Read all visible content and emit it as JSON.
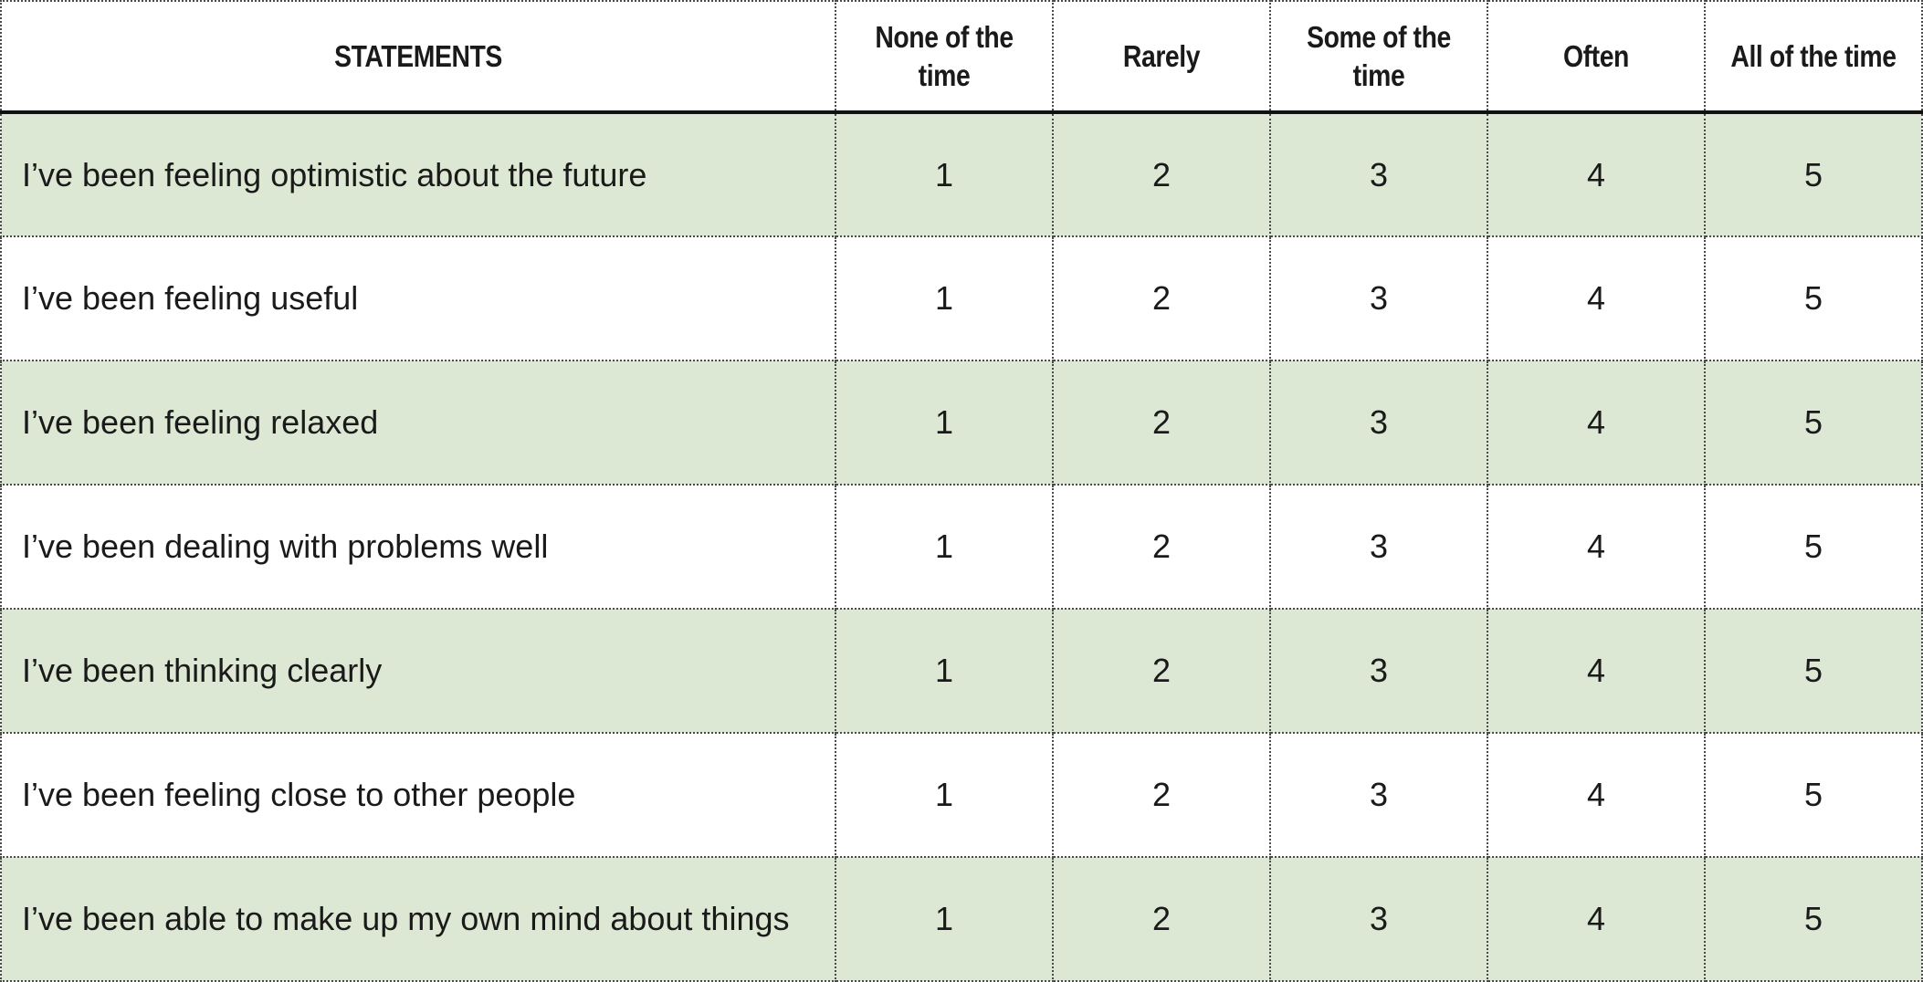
{
  "table": {
    "headers": [
      "STATEMENTS",
      "None of the time",
      "Rarely",
      "Some of the time",
      "Often",
      "All of the time"
    ],
    "rows": [
      {
        "statement": "I’ve been feeling optimistic about the future",
        "values": [
          "1",
          "2",
          "3",
          "4",
          "5"
        ]
      },
      {
        "statement": "I’ve been feeling useful",
        "values": [
          "1",
          "2",
          "3",
          "4",
          "5"
        ]
      },
      {
        "statement": "I’ve been feeling relaxed",
        "values": [
          "1",
          "2",
          "3",
          "4",
          "5"
        ]
      },
      {
        "statement": "I’ve been dealing with problems well",
        "values": [
          "1",
          "2",
          "3",
          "4",
          "5"
        ]
      },
      {
        "statement": "I’ve been thinking clearly",
        "values": [
          "1",
          "2",
          "3",
          "4",
          "5"
        ]
      },
      {
        "statement": "I’ve been feeling close to other people",
        "values": [
          "1",
          "2",
          "3",
          "4",
          "5"
        ]
      },
      {
        "statement": "I’ve been able to make up my own mind about things",
        "values": [
          "1",
          "2",
          "3",
          "4",
          "5"
        ]
      }
    ]
  },
  "colors": {
    "shaded_row": "#dce8d4",
    "plain_row": "#ffffff",
    "text": "#1a1a1a",
    "header_rule": "#111111"
  }
}
